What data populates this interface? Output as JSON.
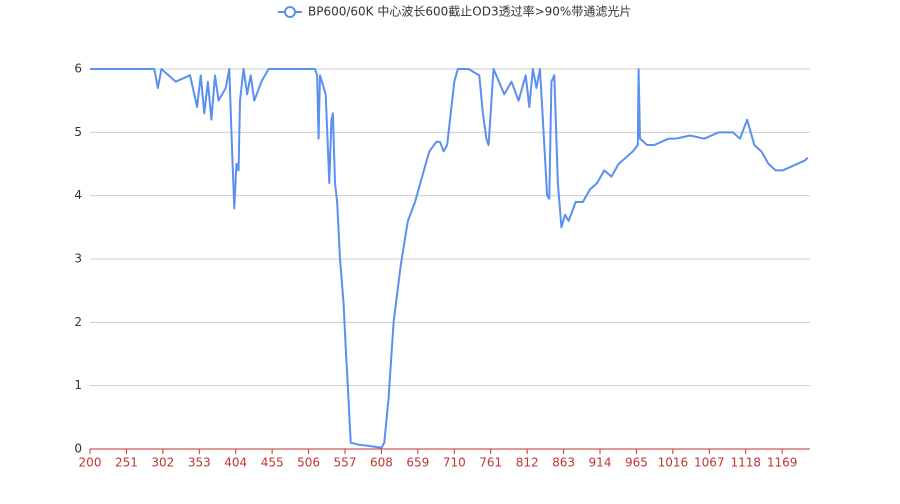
{
  "chart_data": {
    "type": "line",
    "x": [
      200,
      210,
      290,
      295,
      300,
      320,
      340,
      350,
      355,
      360,
      365,
      370,
      375,
      380,
      390,
      395,
      398,
      402,
      405,
      408,
      410,
      415,
      420,
      425,
      430,
      440,
      450,
      500,
      515,
      518,
      520,
      522,
      530,
      535,
      538,
      540,
      543,
      546,
      550,
      555,
      558,
      560,
      565,
      575,
      590,
      608,
      612,
      618,
      625,
      635,
      645,
      655,
      665,
      675,
      685,
      690,
      695,
      700,
      705,
      710,
      715,
      730,
      745,
      750,
      755,
      758,
      762,
      765,
      780,
      790,
      800,
      810,
      815,
      820,
      825,
      830,
      835,
      840,
      843,
      846,
      850,
      855,
      860,
      865,
      870,
      880,
      890,
      900,
      910,
      920,
      930,
      940,
      950,
      960,
      967,
      968,
      970,
      980,
      990,
      1000,
      1010,
      1020,
      1040,
      1060,
      1080,
      1100,
      1110,
      1120,
      1130,
      1140,
      1150,
      1160,
      1170,
      1180,
      1190,
      1200,
      1205
    ],
    "series": [
      {
        "name": "BP600/60K 中心波长600截止OD3透过率>90%带通滤光片",
        "color": "#5b8ff0",
        "values": [
          6,
          6,
          6,
          5.7,
          6,
          5.8,
          5.9,
          5.4,
          5.9,
          5.3,
          5.8,
          5.2,
          5.9,
          5.5,
          5.7,
          6,
          5.0,
          3.8,
          4.5,
          4.4,
          5.5,
          6,
          5.6,
          5.9,
          5.5,
          5.8,
          6,
          6,
          6,
          5.9,
          4.9,
          5.9,
          5.6,
          4.2,
          5.2,
          5.3,
          4.2,
          3.9,
          3.0,
          2.3,
          1.6,
          1.2,
          0.1,
          0.07,
          0.05,
          0.02,
          0.1,
          0.8,
          2.0,
          2.9,
          3.6,
          3.9,
          4.3,
          4.7,
          4.85,
          4.85,
          4.7,
          4.8,
          5.3,
          5.8,
          6,
          6,
          5.9,
          5.3,
          4.9,
          4.8,
          5.5,
          6,
          5.6,
          5.8,
          5.5,
          5.9,
          5.4,
          6,
          5.7,
          6,
          5.0,
          4.0,
          3.95,
          5.8,
          5.9,
          4.2,
          3.5,
          3.7,
          3.6,
          3.9,
          3.9,
          4.1,
          4.2,
          4.4,
          4.3,
          4.5,
          4.6,
          4.7,
          4.8,
          6,
          4.9,
          4.8,
          4.8,
          4.85,
          4.9,
          4.9,
          4.95,
          4.9,
          5.0,
          5.0,
          4.9,
          5.2,
          4.8,
          4.7,
          4.5,
          4.4,
          4.4,
          4.45,
          4.5,
          4.55,
          4.6
        ]
      }
    ],
    "xlim": [
      200,
      1208
    ],
    "xticks": [
      200,
      251,
      302,
      353,
      404,
      455,
      506,
      557,
      608,
      659,
      710,
      761,
      812,
      863,
      914,
      965,
      1016,
      1067,
      1118,
      1169
    ],
    "ylim": [
      0,
      6
    ],
    "yticks": [
      0,
      1,
      2,
      3,
      4,
      5,
      6
    ],
    "grid": true,
    "axis_color": "#c23531"
  }
}
